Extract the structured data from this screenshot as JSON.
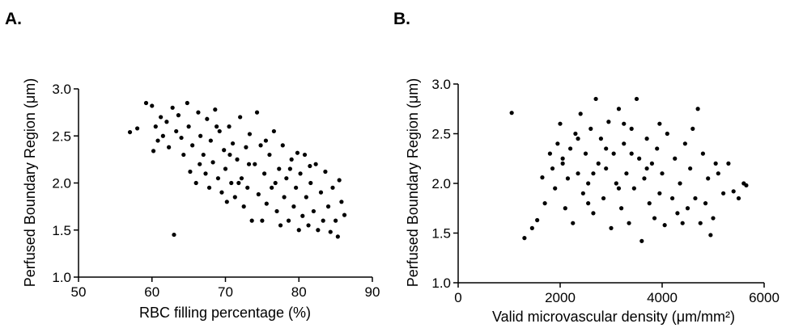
{
  "panels": [
    {
      "label": "A."
    },
    {
      "label": "B."
    }
  ],
  "chart_data": [
    {
      "type": "scatter",
      "panel": "A.",
      "xlabel": "RBC filling percentage (%)",
      "ylabel": "Perfused  Boundary  Region (μm)",
      "xlim": [
        50,
        90
      ],
      "ylim": [
        1.0,
        3.0
      ],
      "xticks": [
        50,
        60,
        70,
        80,
        90
      ],
      "yticks": [
        "1.0",
        "1.5",
        "2.0",
        "2.5",
        "3.0"
      ],
      "grid": false,
      "marker_color": "#000000",
      "points": [
        [
          57.0,
          2.54
        ],
        [
          58.0,
          2.58
        ],
        [
          59.2,
          2.85
        ],
        [
          60.0,
          2.82
        ],
        [
          60.2,
          2.34
        ],
        [
          60.5,
          2.6
        ],
        [
          60.8,
          2.45
        ],
        [
          61.2,
          2.7
        ],
        [
          61.5,
          2.5
        ],
        [
          62.0,
          2.65
        ],
        [
          62.3,
          2.38
        ],
        [
          62.8,
          2.8
        ],
        [
          63.0,
          1.45
        ],
        [
          63.3,
          2.55
        ],
        [
          63.6,
          2.72
        ],
        [
          64.0,
          2.48
        ],
        [
          64.3,
          2.3
        ],
        [
          64.8,
          2.85
        ],
        [
          65.0,
          2.6
        ],
        [
          65.2,
          2.12
        ],
        [
          65.5,
          2.4
        ],
        [
          66.0,
          2.0
        ],
        [
          66.3,
          2.75
        ],
        [
          66.6,
          2.5
        ],
        [
          67.0,
          2.3
        ],
        [
          67.3,
          2.1
        ],
        [
          67.5,
          2.68
        ],
        [
          67.8,
          1.95
        ],
        [
          68.0,
          2.45
        ],
        [
          68.3,
          2.22
        ],
        [
          68.6,
          2.78
        ],
        [
          69.0,
          2.05
        ],
        [
          69.2,
          2.55
        ],
        [
          69.5,
          1.9
        ],
        [
          69.8,
          2.35
        ],
        [
          70.0,
          2.15
        ],
        [
          70.2,
          1.8
        ],
        [
          70.5,
          2.6
        ],
        [
          70.8,
          2.0
        ],
        [
          71.0,
          2.42
        ],
        [
          71.3,
          1.85
        ],
        [
          71.6,
          2.25
        ],
        [
          72.0,
          2.7
        ],
        [
          72.2,
          2.05
        ],
        [
          72.5,
          1.75
        ],
        [
          72.8,
          2.38
        ],
        [
          73.0,
          1.95
        ],
        [
          73.3,
          2.52
        ],
        [
          73.6,
          1.6
        ],
        [
          74.0,
          2.2
        ],
        [
          74.3,
          2.75
        ],
        [
          74.5,
          1.88
        ],
        [
          74.8,
          2.4
        ],
        [
          75.0,
          1.6
        ],
        [
          75.3,
          2.1
        ],
        [
          75.6,
          1.78
        ],
        [
          76.0,
          2.3
        ],
        [
          76.3,
          1.95
        ],
        [
          76.6,
          2.55
        ],
        [
          77.0,
          1.7
        ],
        [
          77.3,
          2.15
        ],
        [
          77.5,
          1.55
        ],
        [
          77.8,
          2.4
        ],
        [
          78.0,
          1.85
        ],
        [
          78.3,
          2.05
        ],
        [
          78.6,
          1.6
        ],
        [
          79.0,
          2.25
        ],
        [
          79.3,
          1.75
        ],
        [
          79.6,
          1.95
        ],
        [
          80.0,
          1.5
        ],
        [
          80.2,
          2.1
        ],
        [
          80.5,
          1.65
        ],
        [
          80.8,
          2.3
        ],
        [
          81.0,
          1.85
        ],
        [
          81.3,
          1.55
        ],
        [
          81.6,
          2.0
        ],
        [
          82.0,
          1.7
        ],
        [
          82.3,
          2.2
        ],
        [
          82.6,
          1.5
        ],
        [
          83.0,
          1.9
        ],
        [
          83.3,
          1.6
        ],
        [
          83.6,
          2.12
        ],
        [
          84.0,
          1.75
        ],
        [
          84.3,
          1.48
        ],
        [
          84.6,
          1.95
        ],
        [
          85.0,
          1.6
        ],
        [
          85.3,
          1.43
        ],
        [
          85.5,
          2.03
        ],
        [
          85.8,
          1.8
        ],
        [
          86.2,
          1.66
        ],
        [
          66.5,
          2.2
        ],
        [
          68.8,
          2.6
        ],
        [
          70.6,
          2.3
        ],
        [
          71.8,
          2.0
        ],
        [
          73.2,
          2.2
        ],
        [
          75.5,
          2.45
        ],
        [
          76.8,
          2.0
        ],
        [
          78.8,
          2.15
        ],
        [
          79.8,
          2.32
        ],
        [
          81.5,
          2.18
        ]
      ]
    },
    {
      "type": "scatter",
      "panel": "B.",
      "xlabel": "Valid microvascular density (μm/mm²)",
      "ylabel": "Perfused  Boundary  Region (μm)",
      "xlim": [
        0,
        6000
      ],
      "ylim": [
        1.0,
        3.0
      ],
      "xticks": [
        0,
        2000,
        4000,
        6000
      ],
      "yticks": [
        "1.0",
        "1.5",
        "2.0",
        "2.5",
        "3.0"
      ],
      "grid": false,
      "marker_color": "#000000",
      "points": [
        [
          1050,
          2.71
        ],
        [
          1300,
          1.45
        ],
        [
          1450,
          1.55
        ],
        [
          1550,
          1.63
        ],
        [
          1650,
          2.06
        ],
        [
          1700,
          1.8
        ],
        [
          1800,
          2.3
        ],
        [
          1850,
          2.15
        ],
        [
          1900,
          1.95
        ],
        [
          1950,
          2.4
        ],
        [
          2000,
          2.6
        ],
        [
          2050,
          2.2
        ],
        [
          2100,
          1.75
        ],
        [
          2150,
          2.05
        ],
        [
          2200,
          2.35
        ],
        [
          2250,
          1.6
        ],
        [
          2300,
          2.5
        ],
        [
          2350,
          2.1
        ],
        [
          2400,
          2.7
        ],
        [
          2450,
          1.9
        ],
        [
          2500,
          2.3
        ],
        [
          2550,
          2.0
        ],
        [
          2600,
          2.55
        ],
        [
          2650,
          1.7
        ],
        [
          2700,
          2.85
        ],
        [
          2750,
          2.2
        ],
        [
          2800,
          2.45
        ],
        [
          2850,
          1.85
        ],
        [
          2900,
          2.15
        ],
        [
          2950,
          2.62
        ],
        [
          3000,
          1.55
        ],
        [
          3050,
          2.3
        ],
        [
          3100,
          2.0
        ],
        [
          3150,
          2.75
        ],
        [
          3200,
          1.75
        ],
        [
          3250,
          2.4
        ],
        [
          3300,
          2.1
        ],
        [
          3350,
          1.6
        ],
        [
          3400,
          2.55
        ],
        [
          3450,
          1.95
        ],
        [
          3500,
          2.85
        ],
        [
          3550,
          2.25
        ],
        [
          3600,
          1.42
        ],
        [
          3650,
          2.05
        ],
        [
          3700,
          2.45
        ],
        [
          3750,
          1.8
        ],
        [
          3800,
          2.2
        ],
        [
          3850,
          1.65
        ],
        [
          3900,
          2.35
        ],
        [
          3950,
          1.9
        ],
        [
          4000,
          2.1
        ],
        [
          4050,
          1.58
        ],
        [
          4100,
          2.5
        ],
        [
          4200,
          1.85
        ],
        [
          4250,
          2.25
        ],
        [
          4300,
          1.7
        ],
        [
          4350,
          2.0
        ],
        [
          4400,
          1.6
        ],
        [
          4450,
          2.4
        ],
        [
          4500,
          1.75
        ],
        [
          4550,
          2.15
        ],
        [
          4600,
          2.55
        ],
        [
          4650,
          1.85
        ],
        [
          4700,
          2.75
        ],
        [
          4750,
          1.6
        ],
        [
          4800,
          2.3
        ],
        [
          4850,
          1.8
        ],
        [
          4900,
          2.05
        ],
        [
          4950,
          1.48
        ],
        [
          5000,
          1.65
        ],
        [
          5050,
          2.2
        ],
        [
          5100,
          2.1
        ],
        [
          5200,
          1.9
        ],
        [
          5300,
          2.2
        ],
        [
          5400,
          1.92
        ],
        [
          5500,
          1.85
        ],
        [
          5600,
          2.0
        ],
        [
          5650,
          1.98
        ],
        [
          2050,
          2.25
        ],
        [
          2350,
          2.45
        ],
        [
          2650,
          2.1
        ],
        [
          2900,
          2.35
        ],
        [
          3150,
          1.95
        ],
        [
          3400,
          2.3
        ],
        [
          3700,
          2.15
        ],
        [
          3950,
          2.6
        ],
        [
          2550,
          1.8
        ],
        [
          3250,
          2.6
        ]
      ]
    }
  ]
}
